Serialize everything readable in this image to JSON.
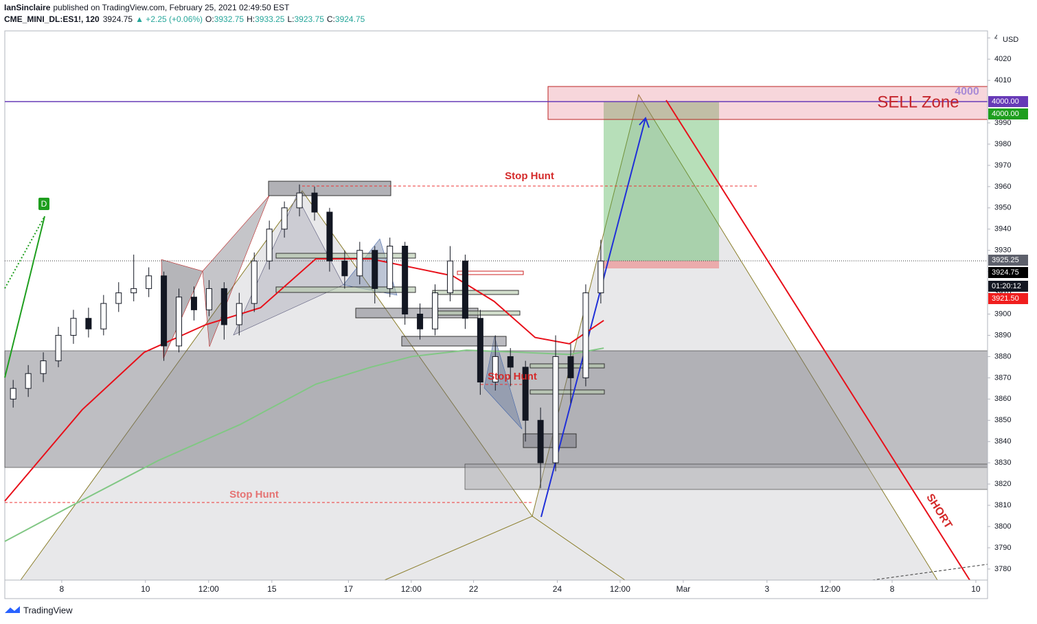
{
  "header": {
    "publisher": "IanSinclaire",
    "published": "published on TradingView.com, February 25, 2021 02:49:50 EST",
    "symbol": "CME_MINI_DL:ES1!, 120",
    "last": "3924.75",
    "change": "▲ +2.25 (+0.06%)",
    "ohlc": [
      {
        "label": "O:",
        "value": "3932.75"
      },
      {
        "label": "H:",
        "value": "3933.25"
      },
      {
        "label": "L:",
        "value": "3923.75"
      },
      {
        "label": "C:",
        "value": "3924.75"
      }
    ]
  },
  "chart_data": {
    "type": "candlestick",
    "currency": "USD",
    "x": [
      0.2,
      0.56,
      0.92,
      1.28,
      1.64,
      2.0,
      2.36,
      2.72,
      3.08,
      3.44,
      3.8,
      4.16,
      4.52,
      4.88,
      5.24,
      5.6,
      5.96,
      6.32,
      6.68,
      7.04,
      7.4,
      7.76,
      8.12,
      8.48,
      8.84,
      9.2,
      9.56,
      9.92,
      10.28,
      10.64,
      11.0,
      11.36,
      11.72,
      12.08,
      12.44,
      12.8,
      13.16,
      13.52,
      13.88,
      14.24
    ],
    "open": [
      3860,
      3865,
      3872,
      3878,
      3890,
      3898,
      3893,
      3905,
      3910,
      3912,
      3918,
      3885,
      3908,
      3902,
      3912,
      3895,
      3905,
      3925,
      3940,
      3950,
      3957,
      3948,
      3925,
      3918,
      3930,
      3912,
      3932,
      3900,
      3893,
      3910,
      3925,
      3898,
      3868,
      3880,
      3875,
      3850,
      3830,
      3880,
      3870,
      3910
    ],
    "high": [
      3869,
      3876,
      3882,
      3894,
      3902,
      3903,
      3909,
      3915,
      3928,
      3922,
      3920,
      3912,
      3913,
      3916,
      3915,
      3910,
      3929,
      3944,
      3953,
      3961,
      3960,
      3950,
      3930,
      3934,
      3932,
      3936,
      3934,
      3905,
      3914,
      3932,
      3928,
      3902,
      3890,
      3884,
      3878,
      3856,
      3890,
      3886,
      3914,
      3935
    ],
    "low": [
      3856,
      3861,
      3868,
      3875,
      3886,
      3889,
      3890,
      3901,
      3906,
      3908,
      3878,
      3882,
      3897,
      3899,
      3888,
      3890,
      3901,
      3921,
      3936,
      3946,
      3944,
      3920,
      3912,
      3914,
      3905,
      3908,
      3895,
      3888,
      3890,
      3906,
      3893,
      3862,
      3864,
      3866,
      3840,
      3818,
      3826,
      3858,
      3866,
      3905
    ],
    "close": [
      3865,
      3872,
      3878,
      3890,
      3898,
      3893,
      3905,
      3910,
      3912,
      3918,
      3885,
      3908,
      3902,
      3912,
      3895,
      3905,
      3925,
      3940,
      3950,
      3957,
      3948,
      3925,
      3918,
      3930,
      3912,
      3932,
      3900,
      3893,
      3910,
      3925,
      3898,
      3868,
      3880,
      3875,
      3850,
      3830,
      3880,
      3870,
      3910,
      3925
    ],
    "lines": [
      {
        "color": "#e8101a",
        "x": [
          0,
          1.85,
          3.33,
          4.8,
          6.11,
          7.43,
          8.74,
          9.72,
          10.7,
          11.69,
          12.67,
          13.49,
          14.31
        ],
        "values": [
          3812,
          3855,
          3882,
          3895,
          3903,
          3926,
          3926,
          3922,
          3918,
          3906,
          3889,
          3886,
          3897
        ]
      },
      {
        "color": "#81c784",
        "x": [
          0,
          1.52,
          3.66,
          5.62,
          7.43,
          8.74,
          9.72,
          11.03,
          12.34,
          13.49,
          14.31
        ],
        "values": [
          3793,
          3809,
          3831,
          3848,
          3867,
          3875,
          3880,
          3883,
          3882,
          3881,
          3884
        ]
      }
    ],
    "xlim": [
      0,
      23.48
    ],
    "xticks": [
      {
        "value": 1.36,
        "label": "8"
      },
      {
        "value": 3.36,
        "label": "10"
      },
      {
        "value": 4.87,
        "label": "12:00"
      },
      {
        "value": 6.38,
        "label": "15"
      },
      {
        "value": 8.21,
        "label": "17"
      },
      {
        "value": 9.71,
        "label": "12:00"
      },
      {
        "value": 11.2,
        "label": "22"
      },
      {
        "value": 13.2,
        "label": "24"
      },
      {
        "value": 14.7,
        "label": "12:00"
      },
      {
        "value": 16.21,
        "label": "Mar"
      },
      {
        "value": 18.21,
        "label": "3"
      },
      {
        "value": 19.72,
        "label": "12:00"
      },
      {
        "value": 21.2,
        "label": "8"
      },
      {
        "value": 23.2,
        "label": "10"
      }
    ],
    "ylim": [
      3774.8,
      4033.3
    ],
    "yticks": [
      3780,
      3790,
      3800,
      3810,
      3820,
      3830,
      3840,
      3850,
      3860,
      3870,
      3880,
      3890,
      3900,
      3910,
      3920,
      3930,
      3940,
      3950,
      3960,
      3970,
      3980,
      3990,
      4000,
      4010,
      4020,
      {
        "value": 4030,
        "label": "4"
      }
    ],
    "price_labels": [
      {
        "value": 4000,
        "label": "4000.00",
        "color": "#673ab7"
      },
      {
        "value": 4000,
        "label": "4000.00",
        "color": "#1e9e1e"
      },
      {
        "value": 3925.25,
        "label": "3925.25",
        "color": "#5d606b"
      },
      {
        "value": 3924.75,
        "label": "3924.75",
        "color": "#000000"
      },
      {
        "value": 3921.5,
        "label": "3921.50",
        "color": "#f01e1e"
      }
    ],
    "countdown": "01:20:12"
  },
  "annotations": {
    "sell_zone": "SELL Zone",
    "level": "4000",
    "stop_hunt_1": "Stop Hunt",
    "stop_hunt_2": "Stop Hunt",
    "stop_hunt_3": "Stop Hunt",
    "short": "SHORT",
    "point": "D"
  },
  "footer": {
    "brand": "TradingView"
  }
}
